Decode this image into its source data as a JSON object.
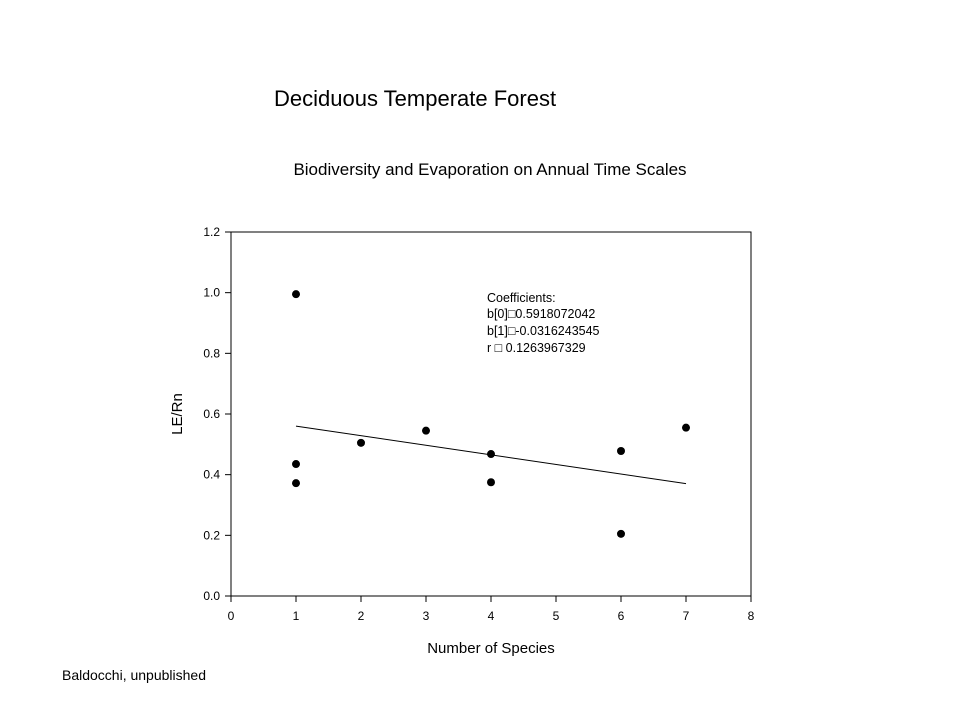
{
  "slide": {
    "title": "Deciduous Temperate Forest",
    "credit": "Baldocchi, unpublished"
  },
  "chart_data": {
    "type": "scatter",
    "title": "Biodiversity and Evaporation on Annual Time Scales",
    "xlabel": "Number of Species",
    "ylabel": "LE/Rn",
    "xlim": [
      0,
      8
    ],
    "ylim": [
      0,
      1.2
    ],
    "x_ticks": [
      "0",
      "1",
      "2",
      "3",
      "4",
      "5",
      "6",
      "7",
      "8"
    ],
    "y_ticks": [
      "0.0",
      "0.2",
      "0.4",
      "0.6",
      "0.8",
      "1.0",
      "1.2"
    ],
    "points": [
      {
        "x": 1,
        "y": 0.995
      },
      {
        "x": 1,
        "y": 0.435
      },
      {
        "x": 1,
        "y": 0.372
      },
      {
        "x": 2,
        "y": 0.505
      },
      {
        "x": 3,
        "y": 0.545
      },
      {
        "x": 4,
        "y": 0.468
      },
      {
        "x": 4,
        "y": 0.375
      },
      {
        "x": 6,
        "y": 0.478
      },
      {
        "x": 6,
        "y": 0.205
      },
      {
        "x": 7,
        "y": 0.555
      }
    ],
    "regression": {
      "x_start": 1,
      "x_end": 7,
      "intercept": 0.5918072042,
      "slope": -0.0316243545
    },
    "annotation_lines": [
      "Coefficients:",
      "b[0]□0.5918072042",
      "b[1]□-0.0316243545",
      "r □ 0.1263967329"
    ],
    "grid": false,
    "legend": "none"
  }
}
